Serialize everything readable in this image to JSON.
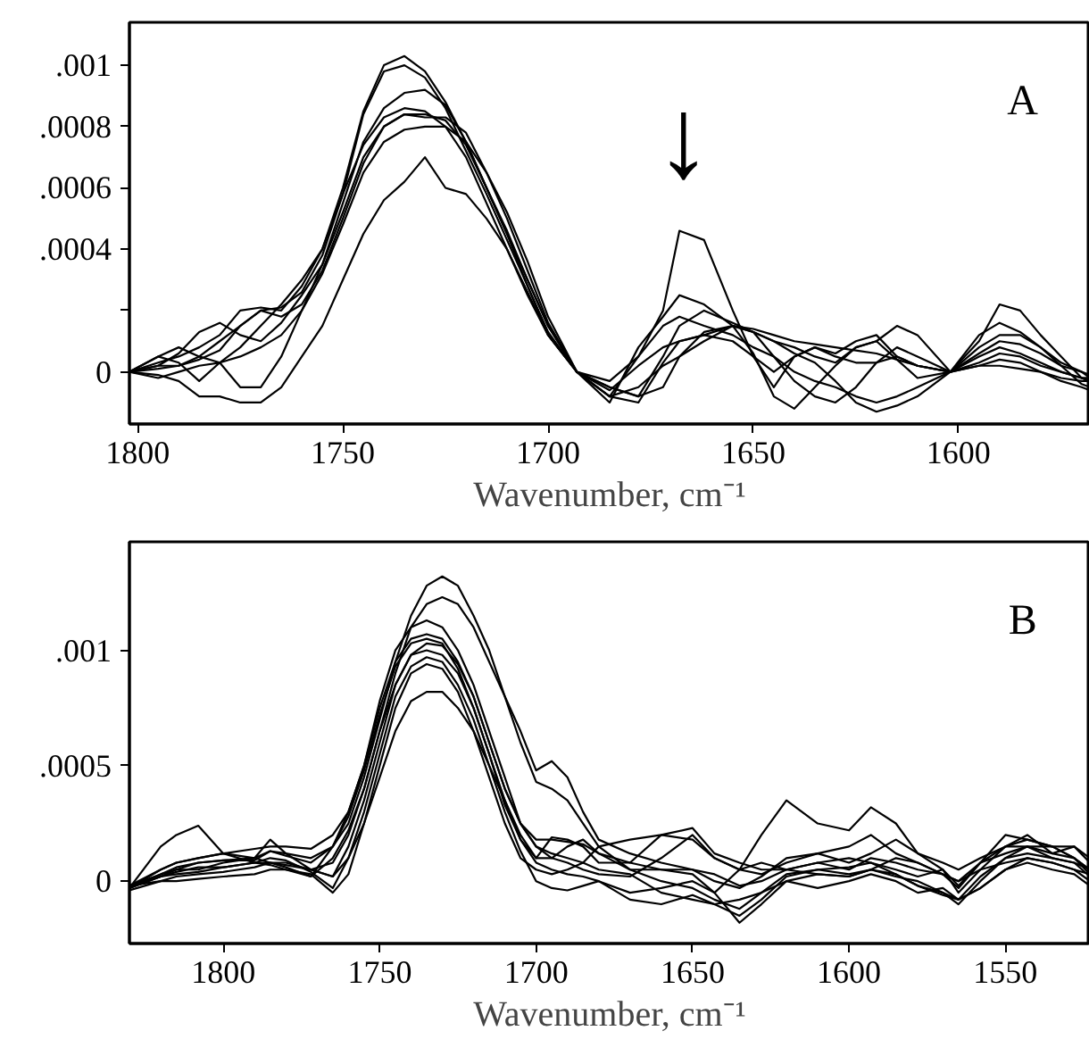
{
  "chart_data": [
    {
      "type": "line",
      "xlabel": "Wavenumber, cm⁻¹",
      "xlim": [
        1802,
        1568
      ],
      "ylim": [
        -0.00017,
        0.00114
      ],
      "xticks": [
        1800,
        1750,
        1700,
        1650,
        1600
      ],
      "yticks": [
        {
          "value": 0,
          "label": "0"
        },
        {
          "value": 0.0002,
          "label": null
        },
        {
          "value": 0.0004,
          "label": ".0004"
        },
        {
          "value": 0.0006,
          "label": ".0006"
        },
        {
          "value": 0.0008,
          "label": ".0008"
        },
        {
          "value": 0.001,
          "label": ".001"
        }
      ],
      "annotations": [
        "A",
        "↓"
      ],
      "x": [
        1802,
        1795,
        1790,
        1785,
        1780,
        1775,
        1770,
        1765,
        1760,
        1755,
        1750,
        1745,
        1740,
        1735,
        1730,
        1725,
        1720,
        1715,
        1710,
        1705,
        1700,
        1693,
        1685,
        1678,
        1672,
        1668,
        1662,
        1655,
        1650,
        1645,
        1640,
        1635,
        1630,
        1625,
        1620,
        1615,
        1610,
        1602,
        1595,
        1590,
        1585,
        1580,
        1575,
        1570,
        1568
      ],
      "series": [
        {
          "color": "#000000",
          "values": [
            0.0,
            3e-05,
            5e-05,
            8e-05,
            0.00012,
            0.0002,
            0.00021,
            0.0002,
            0.00028,
            0.0004,
            0.0006,
            0.00085,
            0.001,
            0.00103,
            0.00098,
            0.00088,
            0.00075,
            0.0006,
            0.00045,
            0.0003,
            0.00015,
            0.0,
            -8e-05,
            5e-05,
            0.0002,
            0.00046,
            0.00043,
            0.0002,
            5e-05,
            -5e-05,
            5e-05,
            8e-05,
            5e-05,
            3e-05,
            3e-05,
            5e-05,
            2e-05,
            0.0,
            0.0001,
            0.00022,
            0.0002,
            0.00012,
            5e-05,
            -2e-05,
            -3e-05
          ]
        },
        {
          "color": "#000000",
          "values": [
            0.0,
            5e-05,
            8e-05,
            5e-05,
            0.0001,
            0.00015,
            0.0002,
            0.00021,
            0.00026,
            0.00038,
            0.00058,
            0.00084,
            0.00098,
            0.001,
            0.00096,
            0.00086,
            0.00072,
            0.00058,
            0.00043,
            0.00028,
            0.00013,
            0.0,
            -0.0001,
            8e-05,
            0.00018,
            0.00025,
            0.00022,
            0.00015,
            6e-05,
            -8e-05,
            -0.00012,
            -5e-05,
            2e-05,
            8e-05,
            0.0001,
            4e-05,
            -2e-05,
            0.0,
            0.00012,
            0.00016,
            0.00013,
            8e-05,
            2e-05,
            -4e-05,
            -5e-05
          ]
        },
        {
          "color": "#000000",
          "values": [
            0.0,
            2e-05,
            6e-05,
            0.00013,
            0.00016,
            0.00012,
            0.0001,
            0.00016,
            0.00025,
            0.00035,
            0.00055,
            0.00075,
            0.00086,
            0.00091,
            0.00092,
            0.00087,
            0.00075,
            0.0006,
            0.00045,
            0.00028,
            0.00012,
            0.0,
            -5e-05,
            -8e-05,
            5e-05,
            0.00015,
            0.0002,
            0.00016,
            0.00013,
            5e-05,
            -3e-05,
            -8e-05,
            -0.0001,
            -5e-05,
            3e-05,
            8e-05,
            5e-05,
            0.0,
            8e-05,
            0.00012,
            0.00012,
            8e-05,
            3e-05,
            0.0,
            -2e-05
          ]
        },
        {
          "color": "#000000",
          "values": [
            0.0,
            5e-05,
            3e-05,
            -3e-05,
            3e-05,
            8e-05,
            0.00015,
            0.00022,
            0.0003,
            0.0004,
            0.00058,
            0.00074,
            0.00083,
            0.00086,
            0.00085,
            0.0008,
            0.0007,
            0.00055,
            0.0004,
            0.00026,
            0.00012,
            0.0,
            -8e-05,
            -0.0001,
            3e-05,
            0.0001,
            0.00012,
            0.0001,
            5e-05,
            0.0,
            5e-05,
            8e-05,
            6e-05,
            0.0001,
            0.00012,
            5e-05,
            2e-05,
            0.0,
            6e-05,
            0.0001,
            9e-05,
            6e-05,
            2e-05,
            0.0,
            -1e-05
          ]
        },
        {
          "color": "#000000",
          "values": [
            0.0,
            2e-05,
            2e-05,
            5e-05,
            3e-05,
            -5e-05,
            -5e-05,
            5e-05,
            0.0002,
            0.00035,
            0.00052,
            0.0007,
            0.0008,
            0.00084,
            0.00084,
            0.00082,
            0.00074,
            0.0006,
            0.00046,
            0.0003,
            0.00015,
            0.0,
            -3e-05,
            5e-05,
            0.00015,
            0.00018,
            0.00015,
            0.00012,
            8e-05,
            5e-05,
            0.0,
            -3e-05,
            -5e-05,
            -8e-05,
            -0.0001,
            -8e-05,
            -5e-05,
            0.0,
            5e-05,
            8e-05,
            6e-05,
            3e-05,
            0.0,
            -2e-05,
            -3e-05
          ]
        },
        {
          "color": "#000000",
          "values": [
            0.0,
            1e-05,
            2e-05,
            4e-05,
            7e-05,
            0.00015,
            0.0002,
            0.00018,
            0.00022,
            0.00033,
            0.0005,
            0.00068,
            0.0008,
            0.00084,
            0.00083,
            0.00083,
            0.00078,
            0.00065,
            0.0005,
            0.00033,
            0.00016,
            0.0,
            -5e-05,
            -8e-05,
            -5e-05,
            5e-05,
            0.00013,
            0.00015,
            0.00013,
            0.0001,
            8e-05,
            5e-05,
            3e-05,
            8e-05,
            0.0001,
            0.00015,
            0.00012,
            0.0,
            2e-05,
            4e-05,
            3e-05,
            0.0,
            -3e-05,
            -5e-05,
            -6e-05
          ]
        },
        {
          "color": "#000000",
          "values": [
            0.0,
            -2e-05,
            0.0,
            2e-05,
            3e-05,
            5e-05,
            8e-05,
            0.00012,
            0.0002,
            0.00032,
            0.00048,
            0.00065,
            0.00075,
            0.00079,
            0.0008,
            0.0008,
            0.00075,
            0.00065,
            0.00052,
            0.00036,
            0.00018,
            0.0,
            -8e-05,
            -5e-05,
            2e-05,
            5e-05,
            0.0001,
            0.00015,
            0.00013,
            0.0001,
            6e-05,
            3e-05,
            -3e-05,
            -0.0001,
            -0.00013,
            -0.00011,
            -8e-05,
            0.0,
            2e-05,
            2e-05,
            1e-05,
            0.0,
            -2e-05,
            -3e-05,
            -3e-05
          ]
        },
        {
          "color": "#000000",
          "values": [
            0.0,
            -1e-05,
            -3e-05,
            -8e-05,
            -8e-05,
            -0.0001,
            -0.0001,
            -5e-05,
            5e-05,
            0.00015,
            0.0003,
            0.00045,
            0.00056,
            0.00062,
            0.0007,
            0.0006,
            0.00058,
            0.0005,
            0.0004,
            0.00025,
            0.00012,
            0.0,
            -6e-05,
            2e-05,
            8e-05,
            0.0001,
            0.00012,
            0.00015,
            0.00014,
            0.00012,
            0.0001,
            9e-05,
            8e-05,
            7e-05,
            6e-05,
            4e-05,
            2e-05,
            0.0,
            3e-05,
            6e-05,
            5e-05,
            2e-05,
            0.0,
            -2e-05,
            -2e-05
          ]
        }
      ]
    },
    {
      "type": "line",
      "xlabel": "Wavenumber, cm⁻¹",
      "xlim": [
        1830,
        1523
      ],
      "ylim": [
        -0.00027,
        0.00147
      ],
      "xticks": [
        1800,
        1750,
        1700,
        1650,
        1600,
        1550
      ],
      "yticks": [
        {
          "value": 0,
          "label": "0"
        },
        {
          "value": 0.0005,
          "label": ".0005"
        },
        {
          "value": 0.001,
          "label": ".001"
        }
      ],
      "annotations": [
        "B"
      ],
      "x": [
        1830,
        1820,
        1815,
        1808,
        1800,
        1790,
        1785,
        1780,
        1772,
        1765,
        1760,
        1755,
        1750,
        1745,
        1740,
        1735,
        1730,
        1725,
        1720,
        1715,
        1710,
        1705,
        1700,
        1695,
        1690,
        1685,
        1680,
        1670,
        1660,
        1650,
        1643,
        1635,
        1628,
        1620,
        1610,
        1600,
        1593,
        1585,
        1578,
        1570,
        1565,
        1558,
        1550,
        1543,
        1535,
        1528,
        1523
      ],
      "series": [
        {
          "color": "#000000",
          "values": [
            -2e-05,
            5e-05,
            8e-05,
            0.0001,
            0.00012,
            0.0001,
            0.00013,
            0.00012,
            0.0001,
            0.00015,
            0.00025,
            0.00045,
            0.0007,
            0.00095,
            0.00115,
            0.00128,
            0.00132,
            0.00128,
            0.00115,
            0.001,
            0.0008,
            0.0006,
            0.00043,
            0.0004,
            0.00035,
            0.00025,
            0.00015,
            5e-05,
            0.0,
            -3e-05,
            -8e-05,
            -0.00012,
            -5e-05,
            3e-05,
            5e-05,
            3e-05,
            5e-05,
            2e-05,
            0.0,
            -5e-05,
            -8e-05,
            -3e-05,
            5e-05,
            0.0001,
            8e-05,
            5e-05,
            0.0
          ]
        },
        {
          "color": "#000000",
          "values": [
            -2e-05,
            3e-05,
            6e-05,
            8e-05,
            9e-05,
            0.0001,
            8e-05,
            6e-05,
            2e-05,
            0.0001,
            0.00022,
            0.0004,
            0.00065,
            0.0009,
            0.0011,
            0.0012,
            0.00123,
            0.0012,
            0.0011,
            0.00095,
            0.0008,
            0.00065,
            0.00048,
            0.00052,
            0.00045,
            0.0003,
            0.00018,
            0.00012,
            8e-05,
            5e-05,
            3e-05,
            -2e-05,
            0.0,
            5e-05,
            8e-05,
            5e-05,
            0.0001,
            8e-05,
            5e-05,
            3e-05,
            0.0,
            8e-05,
            0.00015,
            0.00018,
            0.00015,
            0.0001,
            5e-05
          ]
        },
        {
          "color": "#000000",
          "values": [
            -3e-05,
            0.00015,
            0.0002,
            0.00024,
            0.00012,
            8e-05,
            7e-05,
            5e-05,
            2e-05,
            0.00015,
            0.0003,
            0.0005,
            0.00078,
            0.001,
            0.0011,
            0.00113,
            0.0011,
            0.001,
            0.00085,
            0.00065,
            0.00045,
            0.00025,
            0.00015,
            0.00012,
            0.0001,
            8e-05,
            5e-05,
            3e-05,
            -5e-05,
            -8e-05,
            -0.0001,
            -0.00015,
            -8e-05,
            2e-05,
            5e-05,
            6e-05,
            8e-05,
            3e-05,
            -2e-05,
            -5e-05,
            -0.0001,
            0.0,
            0.0001,
            0.00015,
            0.0001,
            8e-05,
            5e-05
          ]
        },
        {
          "color": "#000000",
          "values": [
            -3e-05,
            5e-05,
            8e-05,
            0.0001,
            0.00012,
            0.00014,
            0.00015,
            0.00015,
            0.00014,
            0.0002,
            0.0003,
            0.0005,
            0.00075,
            0.00095,
            0.00105,
            0.00107,
            0.00105,
            0.00095,
            0.0008,
            0.0006,
            0.0004,
            0.00025,
            0.00018,
            0.00018,
            0.00017,
            0.00016,
            0.00012,
            5e-05,
            5e-05,
            3e-05,
            -5e-05,
            5e-05,
            0.0002,
            0.00035,
            0.00025,
            0.00022,
            0.00032,
            0.00025,
            0.00012,
            8e-05,
            5e-05,
            0.0001,
            0.00015,
            0.00015,
            0.00012,
            0.0001,
            5e-05
          ]
        },
        {
          "color": "#000000",
          "values": [
            -3e-05,
            2e-05,
            5e-05,
            5e-05,
            8e-05,
            0.0001,
            0.00018,
            0.00012,
            5e-05,
            8e-05,
            0.0002,
            0.0004,
            0.00065,
            0.00085,
            0.00098,
            0.00103,
            0.00102,
            0.00094,
            0.0008,
            0.0006,
            0.0004,
            0.00025,
            0.00015,
            0.0001,
            8e-05,
            5e-05,
            3e-05,
            2e-05,
            0.0001,
            0.0002,
            0.0001,
            5e-05,
            3e-05,
            8e-05,
            0.00012,
            8e-05,
            0.00012,
            0.00018,
            0.00012,
            5e-05,
            -5e-05,
            5e-05,
            0.00015,
            0.0002,
            0.00012,
            0.00015,
            8e-05
          ]
        },
        {
          "color": "#000000",
          "values": [
            -4e-05,
            0.0,
            2e-05,
            3e-05,
            4e-05,
            6e-05,
            8e-05,
            8e-05,
            5e-05,
            2e-05,
            0.00015,
            0.00035,
            0.0006,
            0.00085,
            0.00098,
            0.001,
            0.00098,
            0.0009,
            0.00075,
            0.00055,
            0.00035,
            0.00018,
            8e-05,
            5e-05,
            3e-05,
            2e-05,
            0.0,
            -5e-05,
            -3e-05,
            0.0,
            -5e-05,
            -0.00018,
            -0.0001,
            0.0,
            3e-05,
            2e-05,
            5e-05,
            3e-05,
            -2e-05,
            -6e-05,
            -8e-05,
            -3e-05,
            5e-05,
            8e-05,
            5e-05,
            3e-05,
            -2e-05
          ]
        },
        {
          "color": "#000000",
          "values": [
            -3e-05,
            2e-05,
            3e-05,
            4e-05,
            6e-05,
            8e-05,
            0.0001,
            9e-05,
            4e-05,
            -3e-05,
            0.0001,
            0.0003,
            0.00055,
            0.0008,
            0.00093,
            0.00097,
            0.00095,
            0.00085,
            0.0007,
            0.0005,
            0.0003,
            0.00013,
            0.0,
            -3e-05,
            -4e-05,
            -2e-05,
            0.0,
            -8e-05,
            -0.0001,
            -6e-05,
            -0.0001,
            -8e-05,
            -5e-05,
            0.0,
            -3e-05,
            0.0,
            3e-05,
            0.0,
            -5e-05,
            -3e-05,
            -8e-05,
            2e-05,
            0.0001,
            0.00012,
            0.0001,
            8e-05,
            2e-05
          ]
        },
        {
          "color": "#000000",
          "values": [
            -2e-05,
            0.0,
            0.0,
            1e-05,
            2e-05,
            3e-05,
            5e-05,
            5e-05,
            3e-05,
            -5e-05,
            3e-05,
            0.00025,
            0.0005,
            0.00075,
            0.0009,
            0.00094,
            0.00092,
            0.00082,
            0.00065,
            0.00045,
            0.00025,
            0.0001,
            5e-05,
            3e-05,
            5e-05,
            8e-05,
            0.00015,
            0.00018,
            0.0002,
            0.00023,
            0.00012,
            8e-05,
            5e-05,
            5e-05,
            8e-05,
            0.0001,
            8e-05,
            5e-05,
            2e-05,
            5e-05,
            -2e-05,
            8e-05,
            0.00012,
            0.00015,
            0.00015,
            0.0001,
            3e-05
          ]
        },
        {
          "color": "#000000",
          "values": [
            -2e-05,
            2e-05,
            4e-05,
            6e-05,
            6e-05,
            8e-05,
            8e-05,
            7e-05,
            5e-05,
            2e-05,
            0.0001,
            0.00025,
            0.00045,
            0.00065,
            0.00078,
            0.00082,
            0.00082,
            0.00075,
            0.00065,
            0.0005,
            0.00035,
            0.0002,
            0.0001,
            0.0001,
            0.00015,
            0.00018,
            0.00012,
            8e-05,
            0.0002,
            0.00018,
            0.0001,
            5e-05,
            8e-05,
            5e-05,
            3e-05,
            2e-05,
            5e-05,
            0.0001,
            8e-05,
            3e-05,
            0.0,
            5e-05,
            8e-05,
            0.0001,
            8e-05,
            5e-05,
            3e-05
          ]
        },
        {
          "color": "#000000",
          "values": [
            -3e-05,
            3e-05,
            5e-05,
            8e-05,
            9e-05,
            9e-05,
            0.00013,
            0.00011,
            8e-05,
            0.00015,
            0.00028,
            0.00048,
            0.00072,
            0.00093,
            0.00103,
            0.00105,
            0.00103,
            0.00092,
            0.00075,
            0.00055,
            0.00033,
            0.00018,
            0.0001,
            0.00019,
            0.00018,
            0.00015,
            8e-05,
            8e-05,
            5e-05,
            5e-05,
            0.0,
            -3e-05,
            2e-05,
            0.0001,
            0.00012,
            0.00015,
            0.0002,
            0.00012,
            8e-05,
            3e-05,
            -3e-05,
            8e-05,
            0.0002,
            0.00018,
            0.00015,
            0.00015,
            0.0001
          ]
        }
      ]
    }
  ]
}
